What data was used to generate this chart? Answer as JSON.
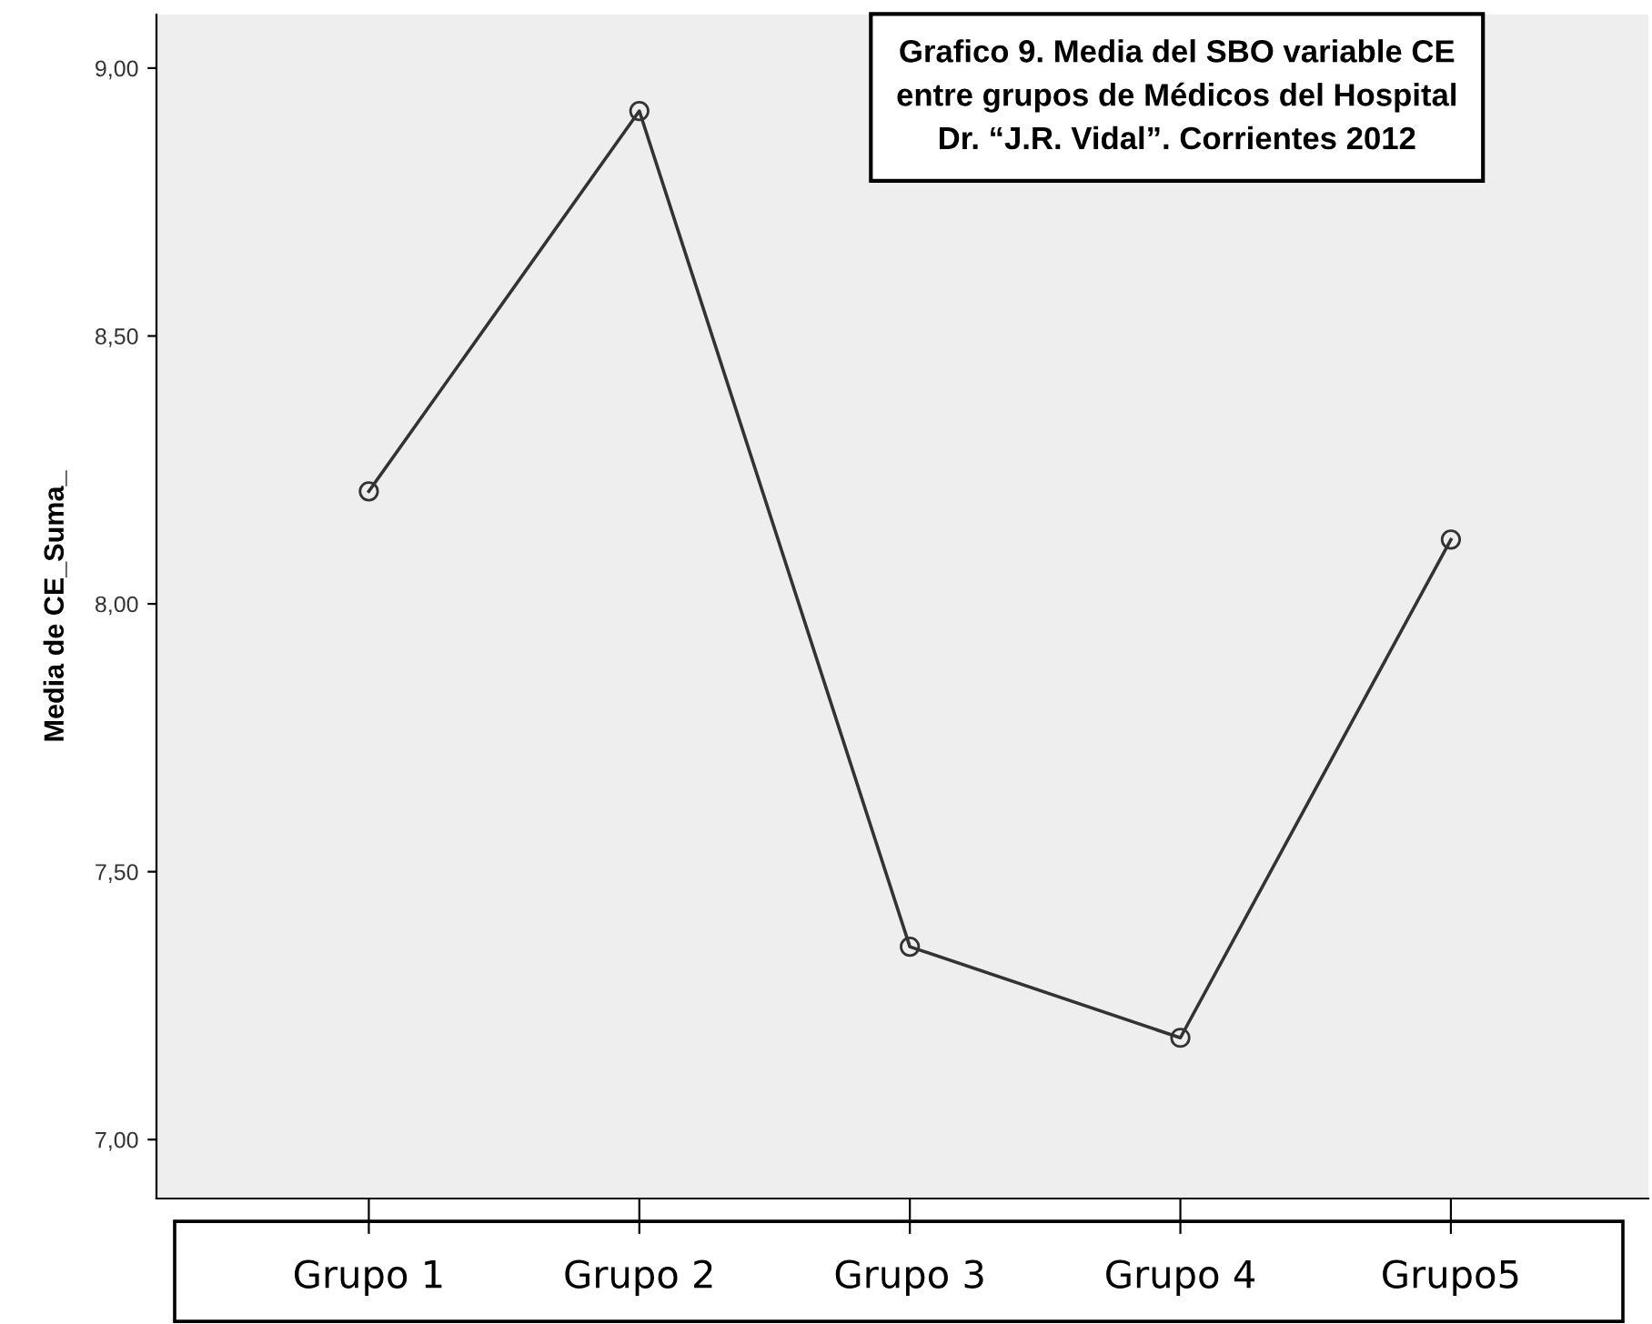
{
  "chart_data": {
    "type": "line",
    "title": "Grafico 9. Media del SBO variable CE\nentre grupos de Médicos del Hospital\nDr. “J.R. Vidal”. Corrientes 2012",
    "ylabel": "Media de CE_Suma_",
    "categories": [
      "Grupo 1",
      "Grupo 2",
      "Grupo 3",
      "Grupo 4",
      "Grupo5"
    ],
    "series": [
      {
        "color": "#333333",
        "values": [
          8.21,
          8.92,
          7.36,
          7.19,
          8.12
        ]
      }
    ],
    "ylim": [
      6.89,
      9.1
    ],
    "yticks": [
      {
        "value": 7,
        "label": "7,00"
      },
      {
        "value": 7.5,
        "label": "7,50"
      },
      {
        "value": 8,
        "label": "8,00"
      },
      {
        "value": 8.5,
        "label": "8,50"
      },
      {
        "value": 9,
        "label": "9,00"
      }
    ],
    "marker": "circle",
    "line_style": "solid",
    "grid": false,
    "legend": false
  }
}
